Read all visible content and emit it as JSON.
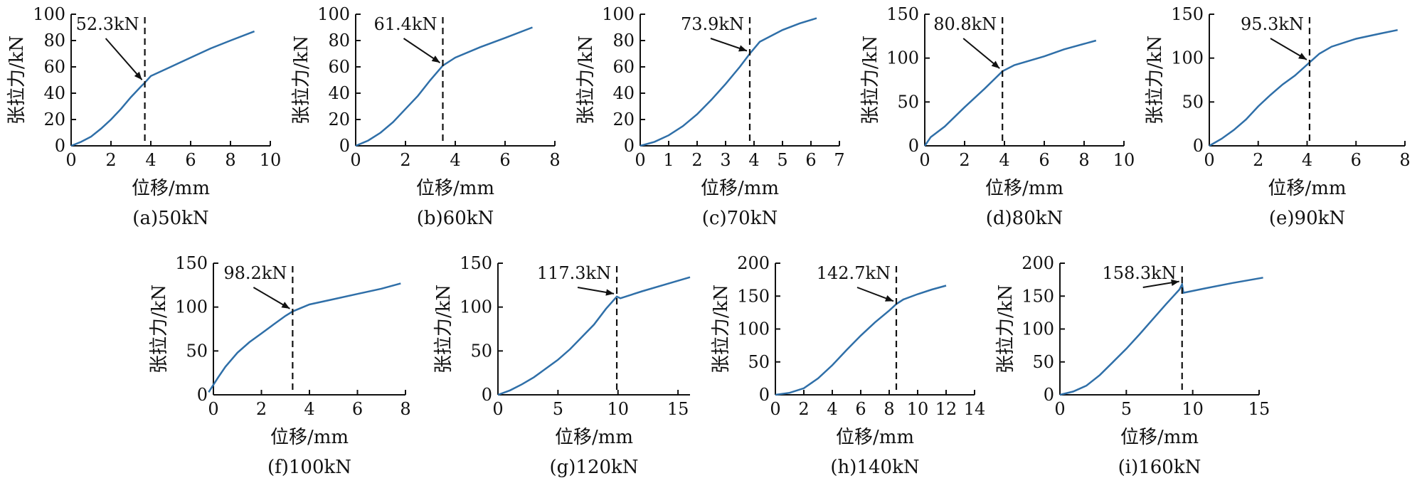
{
  "chart_data": [
    {
      "type": "line",
      "caption": "(a)50kN",
      "xlabel": "位移/mm",
      "ylabel": "张拉力/kN",
      "xlim": [
        0,
        10
      ],
      "ylim": [
        0,
        100
      ],
      "xticks": [
        0,
        2,
        4,
        6,
        8,
        10
      ],
      "yticks": [
        0,
        20,
        40,
        60,
        80,
        100
      ],
      "threshold_x": 3.7,
      "annotation": "52.3kN",
      "series": [
        {
          "x": [
            0,
            0.5,
            1,
            1.5,
            2,
            2.5,
            3,
            3.5,
            3.7,
            4,
            5,
            6,
            7,
            8,
            9.2
          ],
          "y": [
            0,
            3,
            7,
            13,
            20,
            28,
            37,
            45,
            48,
            53,
            60,
            67,
            74,
            80,
            87
          ]
        }
      ]
    },
    {
      "type": "line",
      "caption": "(b)60kN",
      "xlabel": "位移/mm",
      "ylabel": "张拉力/kN",
      "xlim": [
        0,
        8
      ],
      "ylim": [
        0,
        100
      ],
      "xticks": [
        0,
        2,
        4,
        6,
        8
      ],
      "yticks": [
        0,
        20,
        40,
        60,
        80,
        100
      ],
      "threshold_x": 3.5,
      "annotation": "61.4kN",
      "series": [
        {
          "x": [
            0,
            0.5,
            1,
            1.5,
            2,
            2.5,
            3,
            3.5,
            4,
            5,
            6,
            7.1
          ],
          "y": [
            0,
            4,
            10,
            18,
            28,
            38,
            50,
            61,
            67,
            75,
            82,
            90
          ]
        }
      ]
    },
    {
      "type": "line",
      "caption": "(c)70kN",
      "xlabel": "位移/mm",
      "ylabel": "张拉力/kN",
      "xlim": [
        0,
        7
      ],
      "ylim": [
        0,
        100
      ],
      "xticks": [
        0,
        1,
        2,
        3,
        4,
        5,
        6,
        7
      ],
      "yticks": [
        0,
        20,
        40,
        60,
        80,
        100
      ],
      "threshold_x": 3.85,
      "annotation": "73.9kN",
      "series": [
        {
          "x": [
            0,
            0.5,
            1,
            1.5,
            2,
            2.5,
            3,
            3.5,
            3.85,
            4.2,
            5,
            5.6,
            6.2
          ],
          "y": [
            0,
            3,
            8,
            15,
            24,
            35,
            47,
            60,
            70,
            79,
            88,
            93,
            97
          ]
        }
      ]
    },
    {
      "type": "line",
      "caption": "(d)80kN",
      "xlabel": "位移/mm",
      "ylabel": "张拉力/kN",
      "xlim": [
        0,
        10
      ],
      "ylim": [
        0,
        150
      ],
      "xticks": [
        0,
        2,
        4,
        6,
        8,
        10
      ],
      "yticks": [
        0,
        50,
        100,
        150
      ],
      "threshold_x": 3.9,
      "annotation": "80.8kN",
      "series": [
        {
          "x": [
            0,
            0.3,
            1,
            2,
            3,
            3.9,
            4.5,
            6,
            7,
            8.6
          ],
          "y": [
            0,
            10,
            22,
            44,
            65,
            85,
            92,
            102,
            110,
            120
          ]
        }
      ]
    },
    {
      "type": "line",
      "caption": "(e)90kN",
      "xlabel": "位移/mm",
      "ylabel": "张拉力/kN",
      "xlim": [
        0,
        8
      ],
      "ylim": [
        0,
        150
      ],
      "xticks": [
        0,
        2,
        4,
        6,
        8
      ],
      "yticks": [
        0,
        50,
        100,
        150
      ],
      "threshold_x": 4.1,
      "annotation": "95.3kN",
      "series": [
        {
          "x": [
            0,
            0.5,
            1,
            1.5,
            2,
            2.5,
            3,
            3.5,
            4.1,
            4.5,
            5,
            6,
            7,
            7.7
          ],
          "y": [
            0,
            8,
            18,
            30,
            45,
            58,
            70,
            80,
            95,
            105,
            113,
            122,
            128,
            132
          ]
        }
      ]
    },
    {
      "type": "line",
      "caption": "(f)100kN",
      "xlabel": "位移/mm",
      "ylabel": "张拉力/kN",
      "xlim": [
        0,
        8
      ],
      "ylim": [
        0,
        150
      ],
      "xticks": [
        0,
        2,
        4,
        6,
        8
      ],
      "yticks": [
        0,
        50,
        100,
        150
      ],
      "threshold_x": 3.3,
      "annotation": "98.2kN",
      "series": [
        {
          "x": [
            -0.2,
            0.2,
            0.5,
            1,
            1.5,
            2,
            2.5,
            3,
            3.3,
            4,
            5,
            6,
            7,
            7.8
          ],
          "y": [
            3,
            20,
            32,
            48,
            60,
            70,
            80,
            90,
            95,
            103,
            109,
            115,
            121,
            127
          ]
        }
      ]
    },
    {
      "type": "line",
      "caption": "(g)120kN",
      "xlabel": "位移/mm",
      "ylabel": "张拉力/kN",
      "xlim": [
        0,
        16
      ],
      "ylim": [
        0,
        150
      ],
      "xticks": [
        0,
        5,
        10,
        15
      ],
      "yticks": [
        0,
        50,
        100,
        150
      ],
      "threshold_x": 9.9,
      "annotation": "117.3kN",
      "series": [
        {
          "x": [
            0,
            1,
            2,
            3,
            4,
            5,
            6,
            7,
            8,
            9,
            9.9,
            10.2,
            12,
            14,
            16
          ],
          "y": [
            0,
            5,
            12,
            20,
            30,
            40,
            52,
            66,
            80,
            98,
            112,
            110,
            118,
            126,
            134
          ]
        }
      ]
    },
    {
      "type": "line",
      "caption": "(h)140kN",
      "xlabel": "位移/mm",
      "ylabel": "张拉力/kN",
      "xlim": [
        0,
        14
      ],
      "ylim": [
        0,
        200
      ],
      "xticks": [
        0,
        2,
        4,
        6,
        8,
        10,
        12,
        14
      ],
      "yticks": [
        0,
        50,
        100,
        150,
        200
      ],
      "threshold_x": 8.5,
      "annotation": "142.7kN",
      "series": [
        {
          "x": [
            0,
            1,
            2,
            3,
            4,
            5,
            6,
            7,
            8,
            8.5,
            9,
            10,
            11,
            12
          ],
          "y": [
            0,
            3,
            10,
            25,
            45,
            68,
            90,
            110,
            128,
            138,
            145,
            153,
            160,
            166
          ]
        }
      ]
    },
    {
      "type": "line",
      "caption": "(i)160kN",
      "xlabel": "位移/mm",
      "ylabel": "张拉力/kN",
      "xlim": [
        0,
        15
      ],
      "ylim": [
        0,
        200
      ],
      "xticks": [
        0,
        5,
        10,
        15
      ],
      "yticks": [
        0,
        50,
        100,
        150,
        200
      ],
      "threshold_x": 9.2,
      "annotation": "158.3kN",
      "series": [
        {
          "x": [
            0,
            1,
            2,
            3,
            4,
            5,
            6,
            7,
            8,
            9,
            9.2,
            9.3,
            11,
            13,
            15.3
          ],
          "y": [
            0,
            5,
            14,
            30,
            50,
            70,
            92,
            115,
            138,
            160,
            168,
            155,
            162,
            170,
            178
          ]
        }
      ]
    }
  ]
}
